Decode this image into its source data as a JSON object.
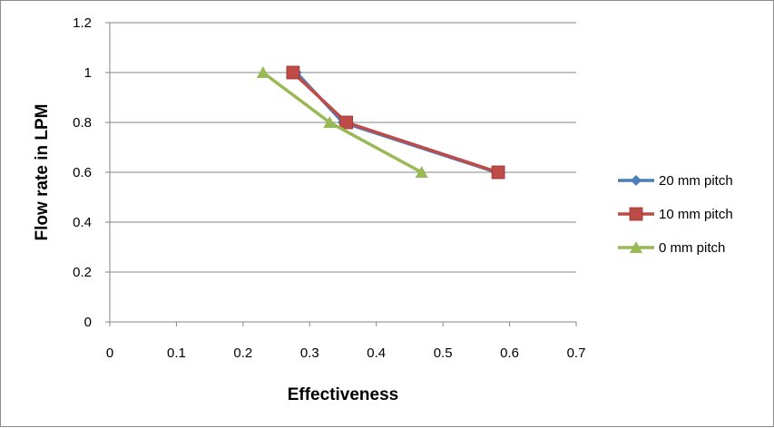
{
  "chart_data": {
    "type": "line",
    "title": "",
    "xlabel": "Effectiveness",
    "ylabel": "Flow rate in LPM",
    "xlim": [
      0,
      0.7
    ],
    "ylim": [
      0,
      1.2
    ],
    "xticks": [
      "0",
      "0.1",
      "0.2",
      "0.3",
      "0.4",
      "0.5",
      "0.6",
      "0.7"
    ],
    "yticks": [
      "0",
      "0.2",
      "0.4",
      "0.6",
      "0.8",
      "1",
      "1.2"
    ],
    "grid": "horizontal",
    "legend_position": "right",
    "series": [
      {
        "name": "20 mm pitch",
        "color": "#4a7ebb",
        "marker": "diamond",
        "x": [
          0.28,
          0.35,
          0.58
        ],
        "y": [
          1.0,
          0.8,
          0.6
        ]
      },
      {
        "name": "10 mm pitch",
        "color": "#be4b48",
        "marker": "square",
        "x": [
          0.275,
          0.355,
          0.583
        ],
        "y": [
          1.0,
          0.8,
          0.6
        ]
      },
      {
        "name": "0 mm pitch",
        "color": "#98b954",
        "marker": "triangle",
        "x": [
          0.23,
          0.33,
          0.468
        ],
        "y": [
          1.0,
          0.8,
          0.6
        ]
      }
    ]
  }
}
